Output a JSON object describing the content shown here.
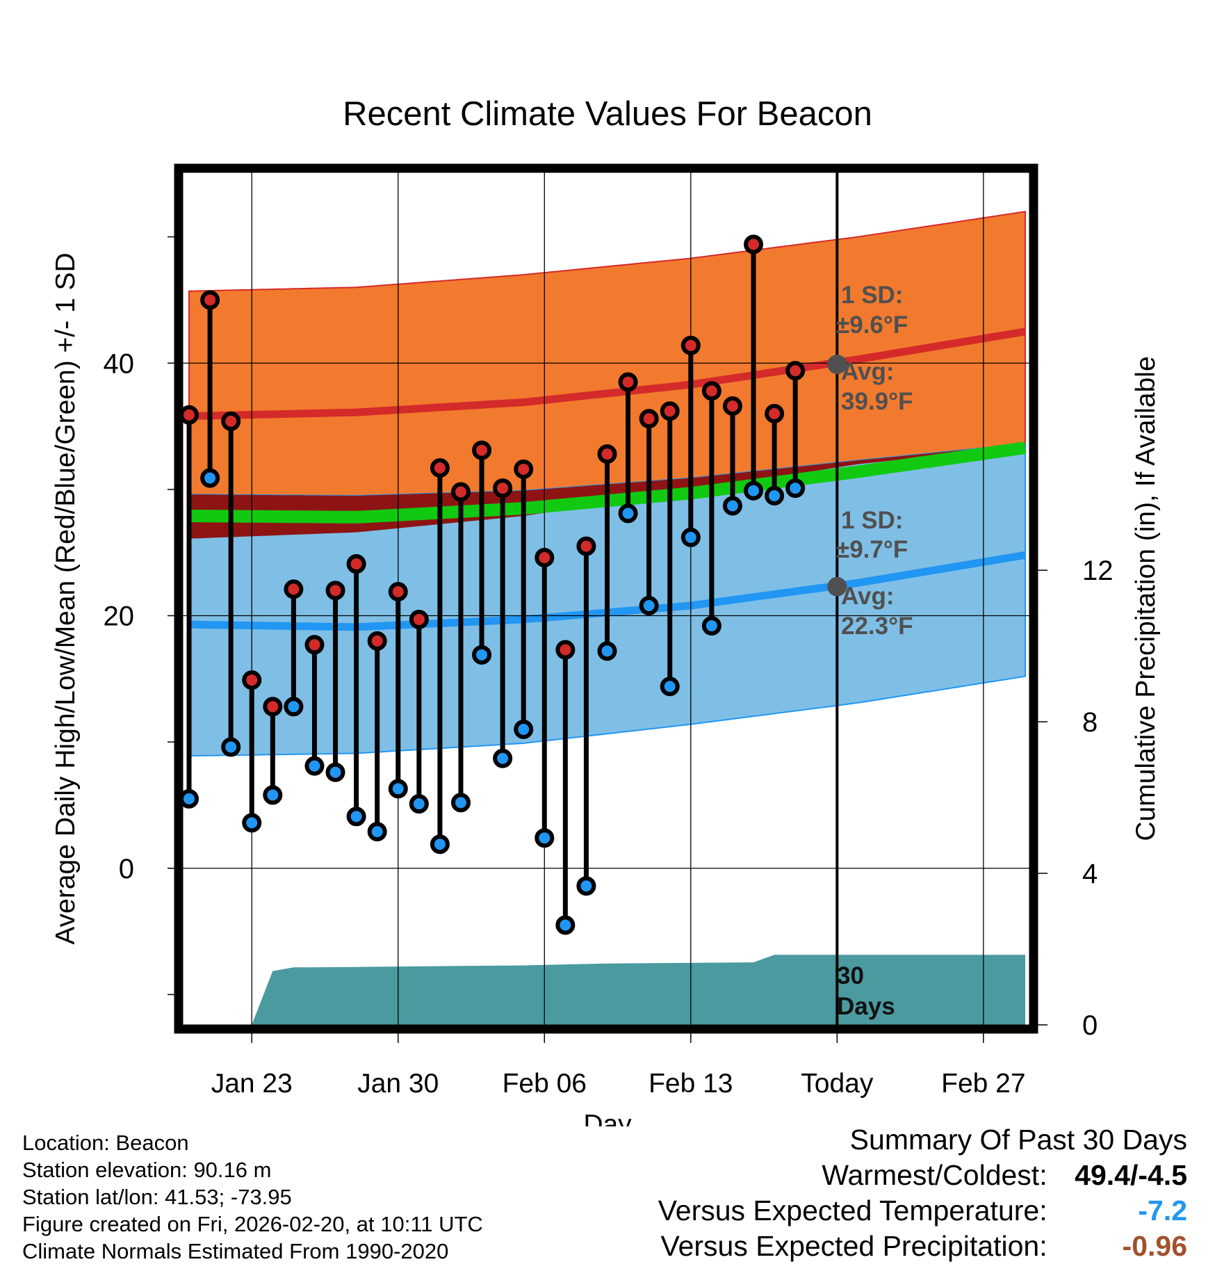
{
  "chart_data": {
    "type": "line",
    "title": "Recent Climate Values For Beacon",
    "xlabel": "Day",
    "ylabel": "Average Daily High/Low/Mean (Red/Blue/Green) +/- 1 SD",
    "ylabel_right": "Cumulative Precipitation (in), If Available",
    "x_tick_labels": [
      "Jan 23",
      "Jan 30",
      "Feb 06",
      "Feb 13",
      "Today",
      "Feb 27"
    ],
    "x_tick_days": [
      3,
      10,
      17,
      24,
      31,
      38
    ],
    "today_day": 31,
    "x_range": [
      -0.3,
      40.2
    ],
    "ylim": [
      -12.4,
      55.1
    ],
    "y_ticks": [
      0,
      20,
      40
    ],
    "y_minor_ticks": [
      -10,
      10,
      30,
      50
    ],
    "y2lim": [
      0,
      22.5
    ],
    "y2_ticks": [
      0,
      4,
      8,
      12
    ],
    "normals": {
      "days": [
        0,
        8,
        16,
        24,
        32,
        40
      ],
      "high_avg": [
        35.8,
        36.1,
        36.9,
        38.3,
        40.3,
        42.5
      ],
      "high_upper": [
        45.7,
        46.0,
        47.0,
        48.3,
        50.0,
        52.0
      ],
      "high_lower": [
        26.1,
        26.6,
        27.9,
        29.9,
        32.0,
        33.4
      ],
      "low_avg": [
        19.3,
        19.1,
        19.7,
        20.8,
        22.6,
        24.8
      ],
      "low_upper": [
        29.6,
        29.5,
        29.9,
        30.9,
        32.3,
        33.6
      ],
      "low_lower": [
        8.9,
        9.1,
        9.9,
        11.4,
        13.1,
        15.2
      ],
      "mean_avg": [
        27.9,
        27.8,
        28.5,
        29.7,
        31.4,
        33.3
      ]
    },
    "series": [
      {
        "name": "High",
        "color": "#d42a2a",
        "days": [
          0,
          1,
          2,
          3,
          4,
          5,
          6,
          7,
          8,
          9,
          10,
          11,
          12,
          13,
          14,
          15,
          16,
          17,
          18,
          19,
          20,
          21,
          22,
          23,
          24,
          25,
          26,
          27,
          28,
          29,
          30
        ],
        "values": [
          35.9,
          45.0,
          35.4,
          14.9,
          12.8,
          22.1,
          17.7,
          22.0,
          24.1,
          18.0,
          21.9,
          19.7,
          31.7,
          29.8,
          33.1,
          30.1,
          31.6,
          24.6,
          17.3,
          25.5,
          32.8,
          38.5,
          35.6,
          36.2,
          41.4,
          37.8,
          36.6,
          49.4,
          36.0,
          39.4,
          null
        ]
      },
      {
        "name": "Low",
        "color": "#2196f3",
        "days": [
          0,
          1,
          2,
          3,
          4,
          5,
          6,
          7,
          8,
          9,
          10,
          11,
          12,
          13,
          14,
          15,
          16,
          17,
          18,
          19,
          20,
          21,
          22,
          23,
          24,
          25,
          26,
          27,
          28,
          29,
          30
        ],
        "values": [
          5.5,
          30.9,
          9.6,
          3.6,
          5.8,
          12.8,
          8.1,
          7.6,
          4.1,
          2.9,
          6.3,
          5.1,
          1.9,
          5.2,
          16.9,
          8.7,
          11.0,
          2.4,
          -4.5,
          -1.4,
          17.2,
          28.1,
          20.8,
          14.4,
          26.2,
          19.2,
          28.7,
          29.9,
          29.5,
          30.1,
          null
        ]
      },
      {
        "name": "Cumulative Precipitation",
        "color": "#4a9aa0",
        "days": [
          3,
          4,
          5,
          6,
          16,
          20,
          27,
          28,
          40
        ],
        "values": [
          0,
          1.42,
          1.52,
          1.52,
          1.57,
          1.62,
          1.65,
          1.85,
          1.85
        ]
      }
    ],
    "annotations": {
      "high_sd_label_1": "1 SD:",
      "high_sd_label_2": "±9.6°F",
      "high_avg_label_1": "Avg:",
      "high_avg_label_2": "39.9°F",
      "low_sd_label_1": "1 SD:",
      "low_sd_label_2": "±9.7°F",
      "low_avg_label_1": "Avg:",
      "low_avg_label_2": "22.3°F",
      "high_today_avg": 39.9,
      "low_today_avg": 22.3,
      "precip_label_1": "30",
      "precip_label_2": "Days"
    },
    "colors": {
      "high_band": "#f27a2e",
      "low_band": "#7fbfe6",
      "overlap_band": "#8e1414",
      "mean_line": "#12c912",
      "high_avg_line": "#d42a2a",
      "low_avg_line": "#2196f3",
      "precip_fill": "#4a9aa0",
      "today_marker": "#505050",
      "annotation_text": "#505050"
    }
  },
  "info": {
    "location": "Location: Beacon",
    "elevation": "Station elevation: 90.16 m",
    "latlon": "Station lat/lon: 41.53; -73.95",
    "created": "Figure created on Fri, 2026-02-20, at 10:11 UTC",
    "normals": "Climate Normals Estimated From 1990-2020"
  },
  "summary": {
    "title": "Summary Of Past 30 Days",
    "warmest_label": "Warmest/Coldest:",
    "warmest_value": "49.4/-4.5",
    "temp_label": "Versus Expected Temperature:",
    "temp_value": "-7.2",
    "temp_color": "#2196f3",
    "precip_label": "Versus Expected Precipitation:",
    "precip_value": "-0.96",
    "precip_color": "#a0522d"
  }
}
